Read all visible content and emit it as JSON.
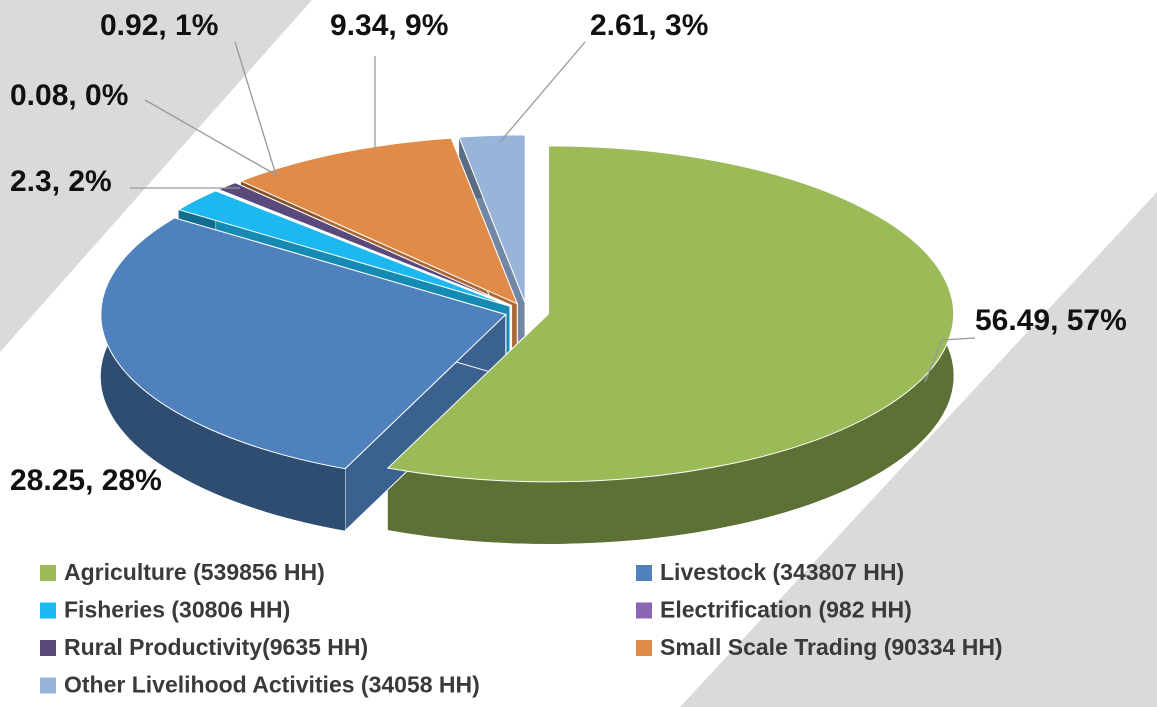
{
  "chart_data": {
    "type": "pie",
    "categories": [
      "Agriculture (539856 HH)",
      "Livestock (343807 HH)",
      "Fisheries (30806 HH)",
      "Electrification (982 HH)",
      "Rural Productivity(9635 HH)",
      "Small Scale Trading (90334 HH)",
      "Other Livelihood Activities (34058 HH)"
    ],
    "values": [
      56.49,
      28.25,
      2.3,
      0.08,
      0.92,
      9.34,
      2.61
    ],
    "value_labels": [
      "56.49, 57%",
      "28.25, 28%",
      "2.3, 2%",
      "0.08, 0%",
      "0.92, 1%",
      "9.34, 9%",
      "2.61, 3%"
    ],
    "colors": [
      "#9bbb59",
      "#4f81bd",
      "#1cb8ef",
      "#8a66b0",
      "#5a4a7c",
      "#e08c48",
      "#98b4d9"
    ]
  }
}
